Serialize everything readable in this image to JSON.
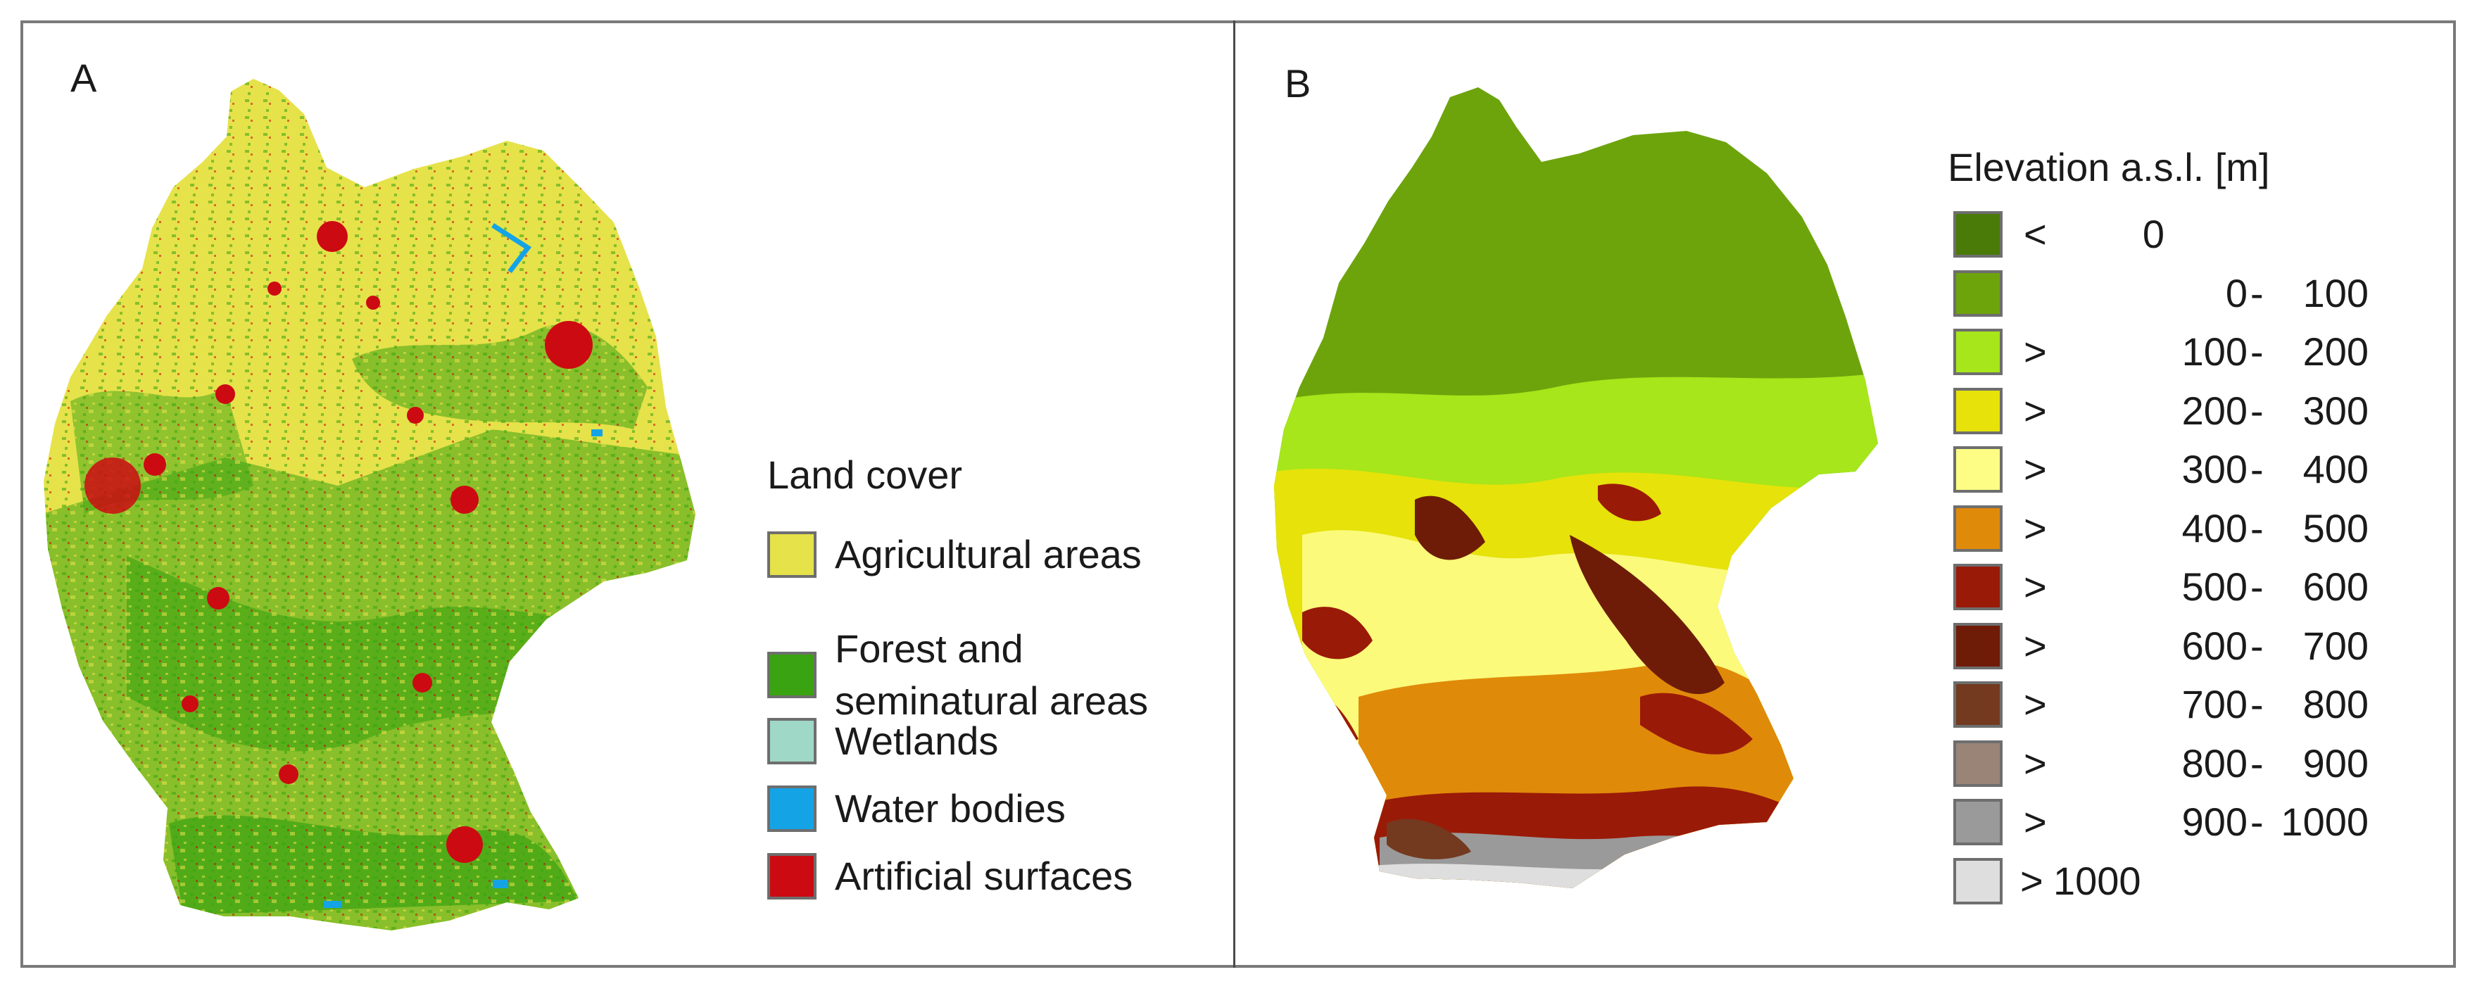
{
  "panel_a": {
    "label": "A",
    "legend_title": "Land cover",
    "legend": [
      {
        "lines": [
          "Agricultural areas"
        ],
        "color": "#e6e24a"
      },
      {
        "lines": [
          "Forest and",
          "seminatural areas"
        ],
        "color": "#3aa311"
      },
      {
        "lines": [
          "Wetlands"
        ],
        "color": "#9fd8c6"
      },
      {
        "lines": [
          "Water bodies"
        ],
        "color": "#14a4e6"
      },
      {
        "lines": [
          "Artificial surfaces"
        ],
        "color": "#cc0a12"
      }
    ]
  },
  "panel_b": {
    "label": "B",
    "legend_title": "Elevation a.s.l. [m]",
    "legend": [
      {
        "op": "<",
        "from": "0",
        "dash": "",
        "to": "",
        "color": "#4a7a08"
      },
      {
        "op": "",
        "from": "0",
        "dash": "-",
        "to": "100",
        "color": "#6da40c"
      },
      {
        "op": ">",
        "from": "100",
        "dash": "-",
        "to": "200",
        "color": "#a6e61a"
      },
      {
        "op": ">",
        "from": "200",
        "dash": "-",
        "to": "300",
        "color": "#e6e20a"
      },
      {
        "op": ">",
        "from": "300",
        "dash": "-",
        "to": "400",
        "color": "#fdfd86"
      },
      {
        "op": ">",
        "from": "400",
        "dash": "-",
        "to": "500",
        "color": "#e08a0a"
      },
      {
        "op": ">",
        "from": "500",
        "dash": "-",
        "to": "600",
        "color": "#9a1a08"
      },
      {
        "op": ">",
        "from": "600",
        "dash": "-",
        "to": "700",
        "color": "#6e1c08"
      },
      {
        "op": ">",
        "from": "700",
        "dash": "-",
        "to": "800",
        "color": "#733a20"
      },
      {
        "op": ">",
        "from": "800",
        "dash": "-",
        "to": "900",
        "color": "#9a8478"
      },
      {
        "op": ">",
        "from": "900",
        "dash": "-",
        "to": "1000",
        "color": "#9a9a9a"
      },
      {
        "op": ">",
        "from": "1000",
        "dash": "",
        "to": "",
        "color": "#dedede"
      }
    ]
  }
}
